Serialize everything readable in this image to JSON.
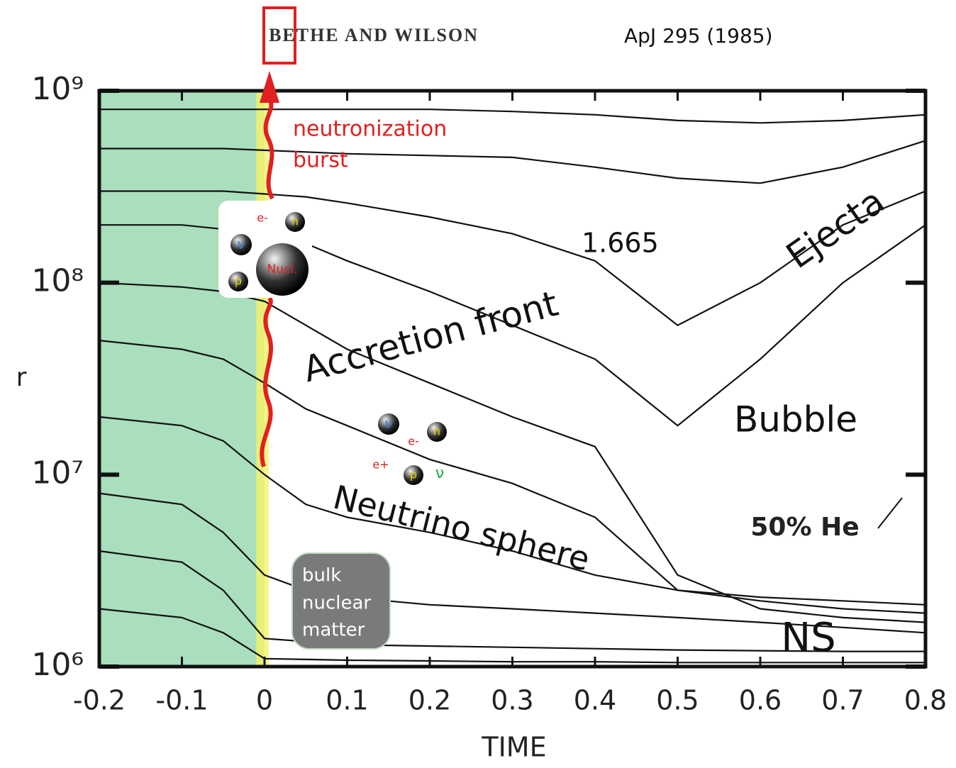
{
  "chart_data": {
    "type": "line",
    "xlabel": "TIME",
    "ylabel": "r",
    "log_y": true,
    "xlim": [
      -0.2,
      0.8
    ],
    "ylim": [
      1000000,
      1000000000
    ],
    "xticks": [
      -0.2,
      -0.1,
      0,
      0.1,
      0.2,
      0.3,
      0.4,
      0.5,
      0.6,
      0.7,
      0.8
    ],
    "yticks": [
      {
        "value": 1000000,
        "label": "10⁶"
      },
      {
        "value": 10000000,
        "label": "10⁷"
      },
      {
        "value": 100000000,
        "label": "10⁸"
      },
      {
        "value": 1000000000,
        "label": "10⁹"
      }
    ],
    "regions": [
      {
        "x": [
          -0.2,
          0
        ],
        "color": "#a9dfbc"
      },
      {
        "x": [
          -0.01,
          0.005
        ],
        "color": "#f6f266"
      }
    ],
    "x": [
      -0.2,
      -0.1,
      -0.05,
      0,
      0.05,
      0.1,
      0.2,
      0.3,
      0.4,
      0.5,
      0.6,
      0.7,
      0.8
    ],
    "series": [
      {
        "color": "#111111",
        "values": [
          800000000,
          800000000,
          800000000,
          800000000,
          800000000,
          800000000,
          800000000,
          780000000,
          750000000,
          700000000,
          680000000,
          700000000,
          750000000
        ]
      },
      {
        "color": "#111111",
        "values": [
          500000000,
          500000000,
          500000000,
          490000000,
          480000000,
          470000000,
          460000000,
          450000000,
          400000000,
          350000000,
          330000000,
          400000000,
          550000000
        ]
      },
      {
        "color": "#111111",
        "values": [
          300000000,
          300000000,
          300000000,
          290000000,
          280000000,
          260000000,
          220000000,
          180000000,
          130000000,
          60000000,
          100000000,
          200000000,
          300000000
        ]
      },
      {
        "color": "#111111",
        "values": [
          200000000,
          200000000,
          190000000,
          180000000,
          160000000,
          130000000,
          90000000,
          60000000,
          40000000,
          18000000,
          40000000,
          100000000,
          200000000
        ]
      },
      {
        "color": "#111111",
        "values": [
          100000000,
          95000000,
          90000000,
          80000000,
          60000000,
          45000000,
          30000000,
          20000000,
          14000000,
          3000000,
          2000000,
          1800000,
          1700000
        ]
      },
      {
        "color": "#111111",
        "values": [
          50000000,
          45000000,
          40000000,
          30000000,
          22000000,
          18000000,
          12000000,
          9000000,
          6000000,
          2500000,
          2200000,
          2000000,
          1900000
        ]
      },
      {
        "color": "#111111",
        "values": [
          20000000,
          18000000,
          15000000,
          10000000,
          7000000,
          6000000,
          5000000,
          4000000,
          3000000,
          2500000,
          2300000,
          2200000,
          2100000
        ]
      },
      {
        "color": "#111111",
        "values": [
          8000000,
          7000000,
          5000000,
          3000000,
          2500000,
          2300000,
          2100000,
          2000000,
          1900000,
          1800000,
          1700000,
          1600000,
          1500000
        ]
      },
      {
        "color": "#111111",
        "values": [
          4000000,
          3500000,
          2500000,
          1400000,
          1350000,
          1300000,
          1280000,
          1260000,
          1240000,
          1220000,
          1210000,
          1200000,
          1200000
        ]
      },
      {
        "color": "#111111",
        "values": [
          2000000,
          1800000,
          1500000,
          1100000,
          1090000,
          1080000,
          1070000,
          1060000,
          1060000,
          1050000,
          1050000,
          1050000,
          1050000
        ]
      }
    ],
    "annotations": [
      "BETHE AND WILSON",
      "ApJ 295 (1985)",
      "neutronization",
      "burst",
      "1.665",
      "Ejecta",
      "Accretion front",
      "Bubble",
      "Neutrino sphere",
      "50% He",
      "NS",
      "bulk",
      "nuclear",
      "matter",
      "e-",
      "n",
      "ν",
      "Nucl.",
      "p",
      "ν",
      "e-",
      "n",
      "e+",
      "p",
      "ν"
    ]
  }
}
